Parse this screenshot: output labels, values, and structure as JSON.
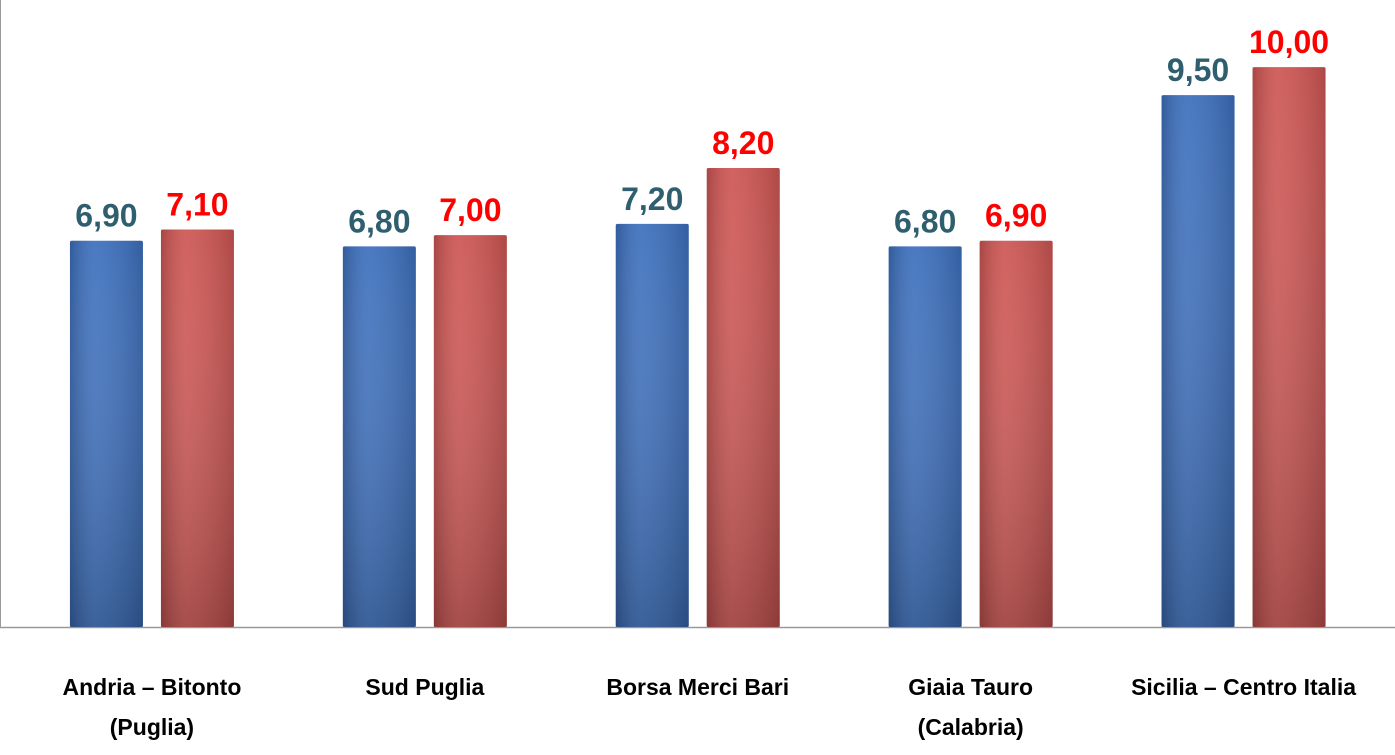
{
  "chart_data": {
    "type": "bar",
    "categories": [
      [
        "Andria – Bitonto",
        "(Puglia)"
      ],
      [
        "Sud Puglia"
      ],
      [
        "Borsa Merci Bari"
      ],
      [
        "Giaia Tauro",
        "(Calabria)"
      ],
      [
        "Sicilia – Centro Italia"
      ]
    ],
    "series": [
      {
        "color": "#3c6fbd",
        "label_color": "#2f5f6f",
        "values": [
          6.9,
          6.8,
          7.2,
          6.8,
          9.5
        ],
        "value_labels": [
          "6,90",
          "6,80",
          "7,20",
          "6,80",
          "9,50"
        ]
      },
      {
        "color": "#cd5552",
        "label_color": "#ff0000",
        "values": [
          7.1,
          7.0,
          8.2,
          6.9,
          10.0
        ],
        "value_labels": [
          "7,10",
          "7,00",
          "8,20",
          "6,90",
          "10,00"
        ]
      }
    ],
    "ylim": [
      0,
      11.2
    ]
  }
}
